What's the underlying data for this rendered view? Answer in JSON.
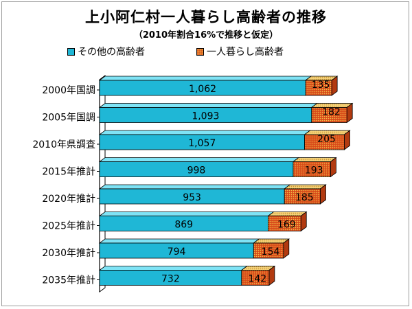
{
  "chart_data": {
    "type": "bar",
    "orientation": "horizontal",
    "stacked": true,
    "title": "上小阿仁村一人暮らし高齢者の推移",
    "subtitle": "（2010年割合16%で推移と仮定）",
    "categories": [
      "2000年国調",
      "2005年国調",
      "2010年県調査",
      "2015年推計",
      "2020年推計",
      "2025年推計",
      "2030年推計",
      "2035年推計"
    ],
    "series": [
      {
        "name": "その他の高齢者",
        "values": [
          1062,
          1093,
          1057,
          998,
          953,
          869,
          794,
          732
        ],
        "labels": [
          "1,062",
          "1,093",
          "1,057",
          "998",
          "953",
          "869",
          "794",
          "732"
        ]
      },
      {
        "name": "一人暮らし高齢者",
        "values": [
          135,
          182,
          205,
          193,
          185,
          169,
          154,
          142
        ],
        "labels": [
          "135",
          "182",
          "205",
          "193",
          "185",
          "169",
          "154",
          "142"
        ]
      }
    ],
    "xlim": [
      0,
      1400
    ],
    "grid": false,
    "legend": "top"
  },
  "colors": {
    "other_front": "#1fb7d6",
    "other_top": "#7fe3f5",
    "other_side": "#0f7f99",
    "alone_front": "#d84a1a",
    "alone_dots": "#f2c24a",
    "alone_top": "#f5d27a",
    "alone_side": "#b23a10"
  }
}
